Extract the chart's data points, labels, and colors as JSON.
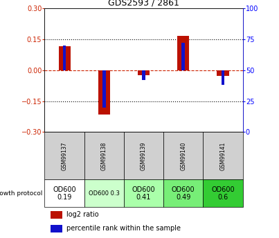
{
  "title": "GDS2593 / 2861",
  "samples": [
    "GSM99137",
    "GSM99138",
    "GSM99139",
    "GSM99140",
    "GSM99141"
  ],
  "log2_ratio": [
    0.115,
    -0.215,
    -0.025,
    0.165,
    -0.028
  ],
  "percentile_rank": [
    70,
    20,
    42,
    72,
    38
  ],
  "ylim_left": [
    -0.3,
    0.3
  ],
  "ylim_right": [
    0,
    100
  ],
  "yticks_left": [
    -0.3,
    -0.15,
    0,
    0.15,
    0.3
  ],
  "yticks_right": [
    0,
    25,
    50,
    75,
    100
  ],
  "bar_color_red": "#bb1100",
  "bar_color_blue": "#1111cc",
  "zero_line_color": "#cc2200",
  "growth_labels": [
    "OD600\n0.19",
    "OD600 0.3",
    "OD600\n0.41",
    "OD600\n0.49",
    "OD600\n0.6"
  ],
  "growth_colors": [
    "#ffffff",
    "#ccffcc",
    "#aaffaa",
    "#77ee77",
    "#33cc33"
  ],
  "growth_text_sizes": [
    7,
    6,
    7,
    7,
    7
  ],
  "label_row": "growth protocol",
  "legend_red": "log2 ratio",
  "legend_blue": "percentile rank within the sample",
  "bar_width": 0.3,
  "percentile_bar_width": 0.08
}
